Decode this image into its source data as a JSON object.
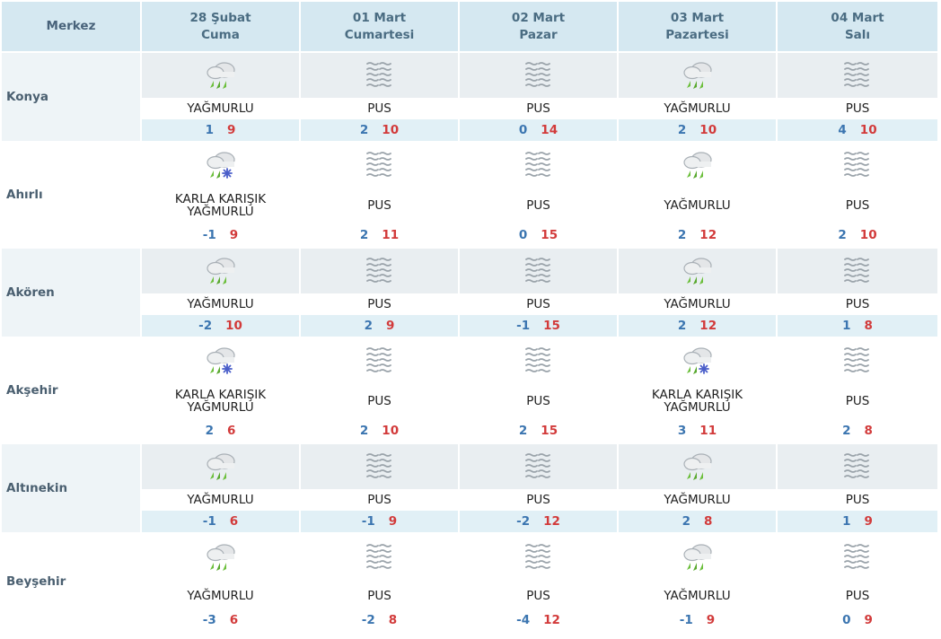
{
  "header": {
    "merkez": "Merkez",
    "days": [
      {
        "date": "28 Şubat",
        "weekday": "Cuma"
      },
      {
        "date": "01 Mart",
        "weekday": "Cumartesi"
      },
      {
        "date": "02 Mart",
        "weekday": "Pazar"
      },
      {
        "date": "03 Mart",
        "weekday": "Pazartesi"
      },
      {
        "date": "04 Mart",
        "weekday": "Salı"
      }
    ]
  },
  "rows": [
    {
      "city": "Konya",
      "days": [
        {
          "icon": "rain-icon",
          "desc": "YAĞMURLU",
          "min": "1",
          "max": "9"
        },
        {
          "icon": "fog-icon",
          "desc": "PUS",
          "min": "2",
          "max": "10"
        },
        {
          "icon": "fog-icon",
          "desc": "PUS",
          "min": "0",
          "max": "14"
        },
        {
          "icon": "rain-icon",
          "desc": "YAĞMURLU",
          "min": "2",
          "max": "10"
        },
        {
          "icon": "fog-icon",
          "desc": "PUS",
          "min": "4",
          "max": "10"
        }
      ]
    },
    {
      "city": "Ahırlı",
      "days": [
        {
          "icon": "sleet-icon",
          "desc": "KARLA KARIŞIK YAĞMURLU",
          "min": "-1",
          "max": "9"
        },
        {
          "icon": "fog-icon",
          "desc": "PUS",
          "min": "2",
          "max": "11"
        },
        {
          "icon": "fog-icon",
          "desc": "PUS",
          "min": "0",
          "max": "15"
        },
        {
          "icon": "rain-icon",
          "desc": "YAĞMURLU",
          "min": "2",
          "max": "12"
        },
        {
          "icon": "fog-icon",
          "desc": "PUS",
          "min": "2",
          "max": "10"
        }
      ]
    },
    {
      "city": "Akören",
      "days": [
        {
          "icon": "rain-icon",
          "desc": "YAĞMURLU",
          "min": "-2",
          "max": "10"
        },
        {
          "icon": "fog-icon",
          "desc": "PUS",
          "min": "2",
          "max": "9"
        },
        {
          "icon": "fog-icon",
          "desc": "PUS",
          "min": "-1",
          "max": "15"
        },
        {
          "icon": "rain-icon",
          "desc": "YAĞMURLU",
          "min": "2",
          "max": "12"
        },
        {
          "icon": "fog-icon",
          "desc": "PUS",
          "min": "1",
          "max": "8"
        }
      ]
    },
    {
      "city": "Akşehir",
      "days": [
        {
          "icon": "sleet-icon",
          "desc": "KARLA KARIŞIK YAĞMURLU",
          "min": "2",
          "max": "6"
        },
        {
          "icon": "fog-icon",
          "desc": "PUS",
          "min": "2",
          "max": "10"
        },
        {
          "icon": "fog-icon",
          "desc": "PUS",
          "min": "2",
          "max": "15"
        },
        {
          "icon": "sleet-icon",
          "desc": "KARLA KARIŞIK YAĞMURLU",
          "min": "3",
          "max": "11"
        },
        {
          "icon": "fog-icon",
          "desc": "PUS",
          "min": "2",
          "max": "8"
        }
      ]
    },
    {
      "city": "Altınekin",
      "days": [
        {
          "icon": "rain-icon",
          "desc": "YAĞMURLU",
          "min": "-1",
          "max": "6"
        },
        {
          "icon": "fog-icon",
          "desc": "PUS",
          "min": "-1",
          "max": "9"
        },
        {
          "icon": "fog-icon",
          "desc": "PUS",
          "min": "-2",
          "max": "12"
        },
        {
          "icon": "rain-icon",
          "desc": "YAĞMURLU",
          "min": "2",
          "max": "8"
        },
        {
          "icon": "fog-icon",
          "desc": "PUS",
          "min": "1",
          "max": "9"
        }
      ]
    },
    {
      "city": "Beyşehir",
      "days": [
        {
          "icon": "rain-icon",
          "desc": "YAĞMURLU",
          "min": "-3",
          "max": "6"
        },
        {
          "icon": "fog-icon",
          "desc": "PUS",
          "min": "-2",
          "max": "8"
        },
        {
          "icon": "fog-icon",
          "desc": "PUS",
          "min": "-4",
          "max": "12"
        },
        {
          "icon": "rain-icon",
          "desc": "YAĞMURLU",
          "min": "-1",
          "max": "9"
        },
        {
          "icon": "fog-icon",
          "desc": "PUS",
          "min": "0",
          "max": "9"
        }
      ]
    }
  ],
  "colors": {
    "header_bg": "#d5e8f1",
    "min_temp": "#3b75b0",
    "max_temp": "#d23a3a",
    "shaded_row": "#e9eef1",
    "temp_band": "#e1f0f6"
  }
}
